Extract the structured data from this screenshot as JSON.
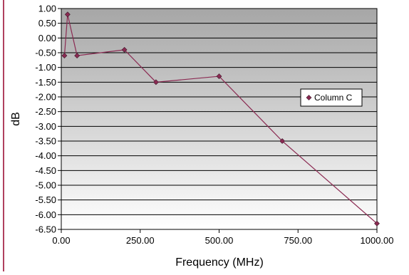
{
  "chart_data": {
    "type": "line",
    "xlabel": "Frequency (MHz)",
    "ylabel": "dB",
    "xlim": [
      0,
      1000
    ],
    "ylim": [
      -6.5,
      1.0
    ],
    "x_ticks": [
      "0.00",
      "250.00",
      "500.00",
      "750.00",
      "1000.00"
    ],
    "y_ticks": [
      "1.00",
      "0.50",
      "0.00",
      "-0.50",
      "-1.00",
      "-1.50",
      "-2.00",
      "-2.50",
      "-3.00",
      "-3.50",
      "-4.00",
      "-4.50",
      "-5.00",
      "-5.50",
      "-6.00",
      "-6.50"
    ],
    "grid": true,
    "legend_position": "right",
    "series": [
      {
        "name": "Column C",
        "color": "#8b2a52",
        "x": [
          10,
          20,
          50,
          200,
          300,
          500,
          700,
          1000
        ],
        "y": [
          -0.6,
          0.8,
          -0.6,
          -0.4,
          -1.5,
          -1.3,
          -3.5,
          -6.3
        ]
      }
    ]
  },
  "colors": {
    "plot_top": "#a6a6a6",
    "plot_bottom": "#ffffff",
    "accent_rule": "#b0405e"
  }
}
